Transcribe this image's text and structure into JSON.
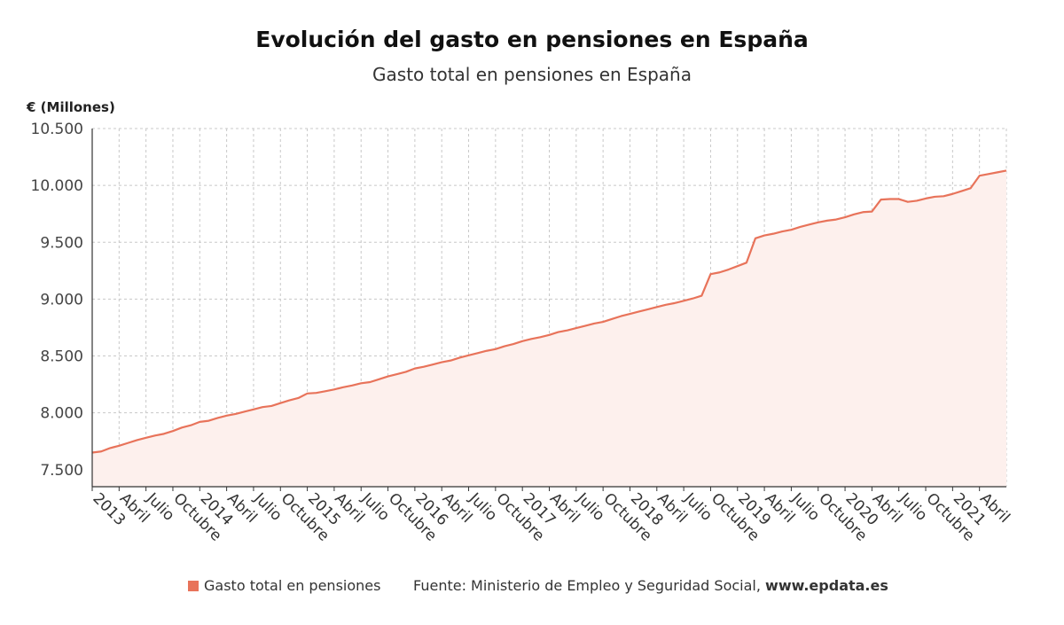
{
  "chart_data": {
    "type": "area",
    "title": "Evolución del gasto en pensiones en España",
    "subtitle": "Gasto total en pensiones en España",
    "ylabel": "€ (Millones)",
    "ylim": [
      7350,
      10500
    ],
    "yticks": [
      7500,
      8000,
      8500,
      9000,
      9500,
      10000,
      10500
    ],
    "ytick_labels": [
      "7.500",
      "8.000",
      "8.500",
      "9.000",
      "9.500",
      "10.000",
      "10.500"
    ],
    "xticks": [
      {
        "index": 0,
        "label": "2013"
      },
      {
        "index": 3,
        "label": "Abril"
      },
      {
        "index": 6,
        "label": "Julio"
      },
      {
        "index": 9,
        "label": "Octubre"
      },
      {
        "index": 12,
        "label": "2014"
      },
      {
        "index": 15,
        "label": "Abril"
      },
      {
        "index": 18,
        "label": "Julio"
      },
      {
        "index": 21,
        "label": "Octubre"
      },
      {
        "index": 24,
        "label": "2015"
      },
      {
        "index": 27,
        "label": "Abril"
      },
      {
        "index": 30,
        "label": "Julio"
      },
      {
        "index": 33,
        "label": "Octubre"
      },
      {
        "index": 36,
        "label": "2016"
      },
      {
        "index": 39,
        "label": "Abril"
      },
      {
        "index": 42,
        "label": "Julio"
      },
      {
        "index": 45,
        "label": "Octubre"
      },
      {
        "index": 48,
        "label": "2017"
      },
      {
        "index": 51,
        "label": "Abril"
      },
      {
        "index": 54,
        "label": "Julio"
      },
      {
        "index": 57,
        "label": "Octubre"
      },
      {
        "index": 60,
        "label": "2018"
      },
      {
        "index": 63,
        "label": "Abril"
      },
      {
        "index": 66,
        "label": "Julio"
      },
      {
        "index": 69,
        "label": "Octubre"
      },
      {
        "index": 72,
        "label": "2019"
      },
      {
        "index": 75,
        "label": "Abril"
      },
      {
        "index": 78,
        "label": "Julio"
      },
      {
        "index": 81,
        "label": "Octubre"
      },
      {
        "index": 84,
        "label": "2020"
      },
      {
        "index": 87,
        "label": "Abril"
      },
      {
        "index": 90,
        "label": "Julio"
      },
      {
        "index": 93,
        "label": "Octubre"
      },
      {
        "index": 96,
        "label": "2021"
      },
      {
        "index": 99,
        "label": "Abril"
      }
    ],
    "grid": true,
    "series": [
      {
        "name": "Gasto total en pensiones",
        "color": "#e8735a",
        "fill": "#fdf0ed",
        "values": [
          7650,
          7660,
          7690,
          7710,
          7735,
          7760,
          7780,
          7800,
          7815,
          7840,
          7870,
          7890,
          7920,
          7930,
          7955,
          7975,
          7990,
          8010,
          8030,
          8050,
          8060,
          8085,
          8110,
          8130,
          8170,
          8175,
          8190,
          8205,
          8225,
          8240,
          8260,
          8270,
          8295,
          8320,
          8340,
          8360,
          8390,
          8405,
          8425,
          8445,
          8460,
          8485,
          8505,
          8525,
          8545,
          8560,
          8585,
          8605,
          8630,
          8650,
          8665,
          8685,
          8710,
          8725,
          8745,
          8765,
          8785,
          8800,
          8825,
          8850,
          8870,
          8890,
          8910,
          8930,
          8950,
          8965,
          8985,
          9005,
          9030,
          9220,
          9235,
          9260,
          9290,
          9320,
          9535,
          9560,
          9575,
          9595,
          9610,
          9635,
          9655,
          9675,
          9690,
          9700,
          9720,
          9745,
          9765,
          9770,
          9875,
          9880,
          9880,
          9855,
          9865,
          9885,
          9900,
          9905,
          9925,
          9950,
          9975,
          10085,
          10100,
          10115,
          10130
        ]
      }
    ],
    "legend": "bottom-left"
  },
  "footer": {
    "legend_label": "Gasto total en pensiones",
    "source_text": "Fuente: Ministerio de Empleo y Seguridad Social, ",
    "source_site": "www.epdata.es"
  },
  "colors": {
    "line": "#e8735a",
    "area": "#fdf0ed",
    "grid": "#c8c8c8",
    "axis": "#333333"
  }
}
